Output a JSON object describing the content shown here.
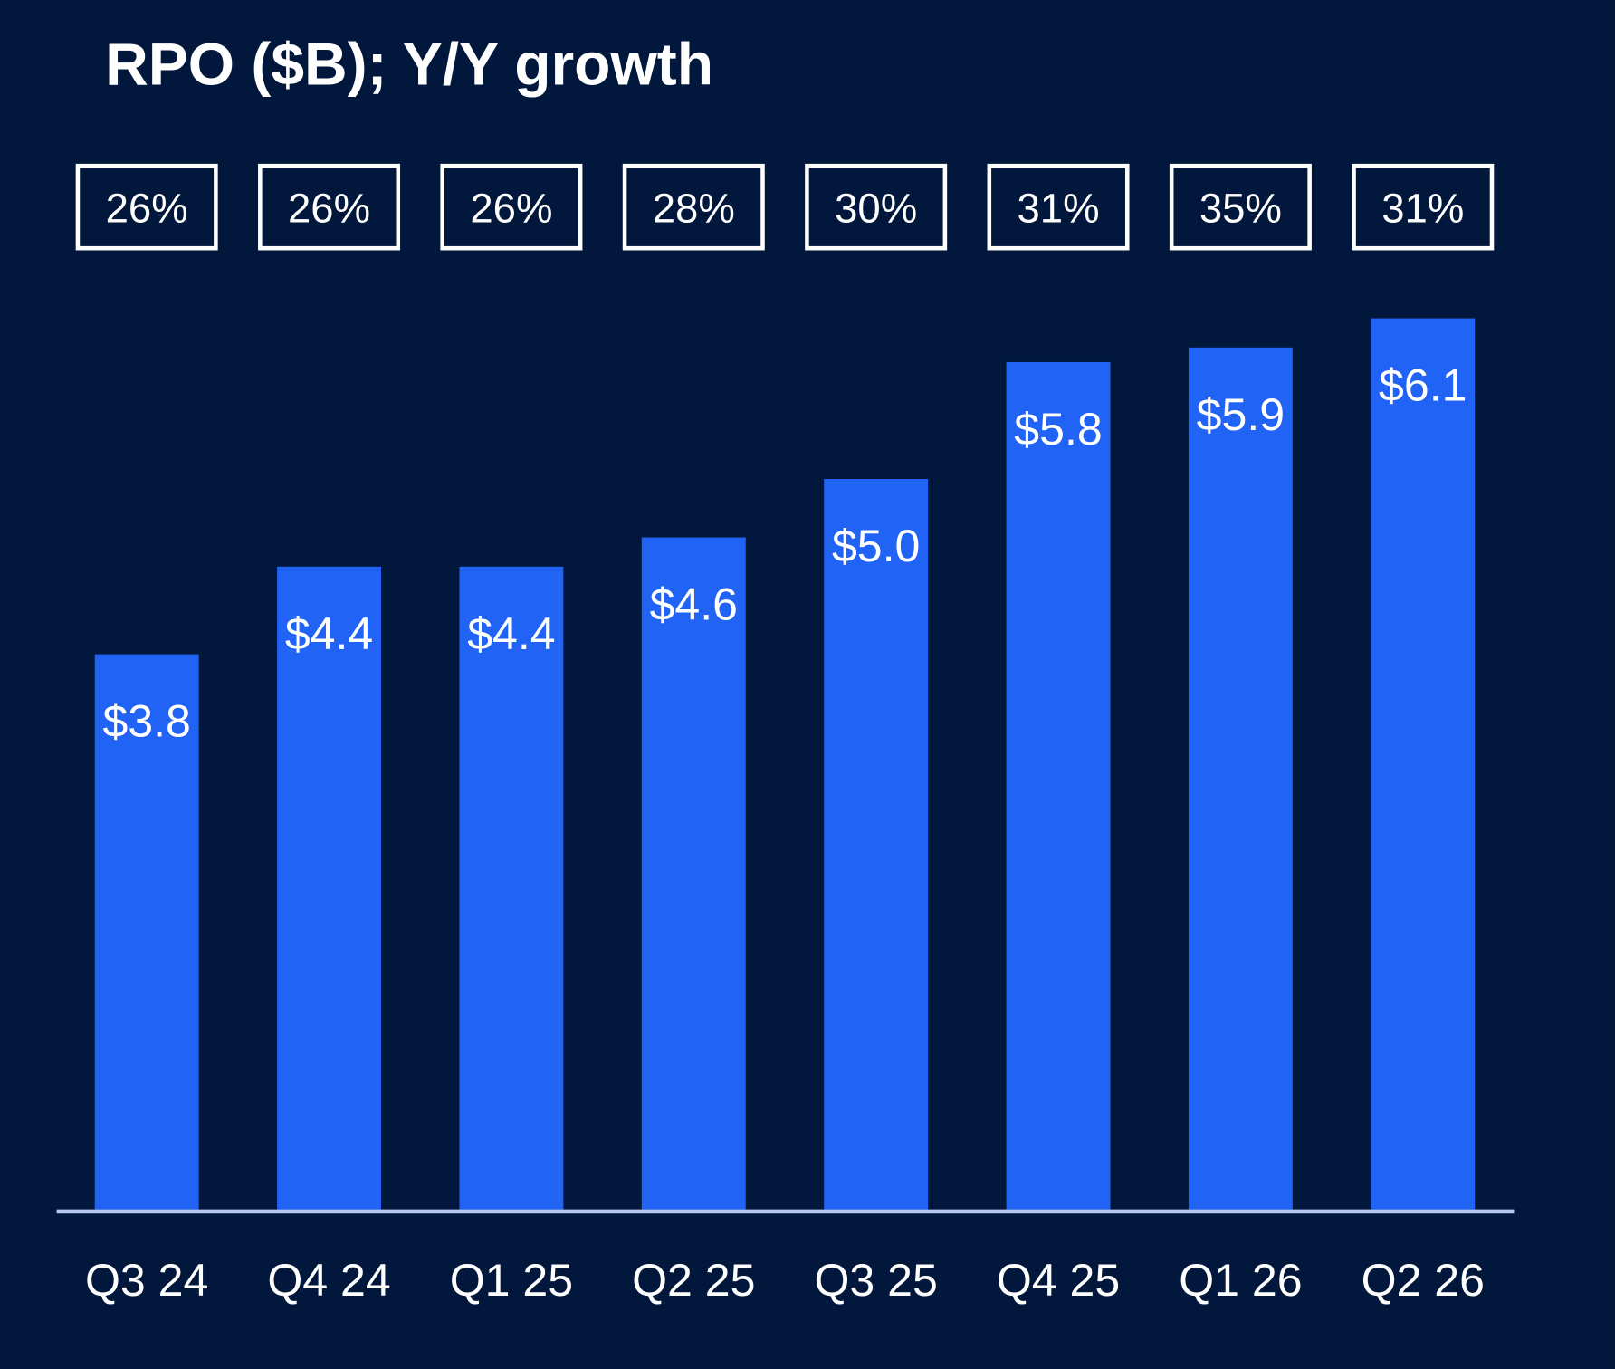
{
  "chart_data": {
    "type": "bar",
    "title": "RPO ($B); Y/Y growth",
    "categories": [
      "Q3 24",
      "Q4 24",
      "Q1 25",
      "Q2 25",
      "Q3 25",
      "Q4 25",
      "Q1 26",
      "Q2 26"
    ],
    "values": [
      3.8,
      4.4,
      4.4,
      4.6,
      5.0,
      5.8,
      5.9,
      6.1
    ],
    "value_labels": [
      "$3.8",
      "$4.4",
      "$4.4",
      "$4.6",
      "$5.0",
      "$5.8",
      "$5.9",
      "$6.1"
    ],
    "growth_labels": [
      "26%",
      "26%",
      "26%",
      "28%",
      "30%",
      "31%",
      "35%",
      "31%"
    ],
    "ylim": [
      0,
      6.1
    ],
    "grid": false,
    "colors": {
      "background": "#01173b",
      "bar": "#2163f5",
      "axis": "#b8c8f0",
      "text": "#ffffff"
    }
  }
}
